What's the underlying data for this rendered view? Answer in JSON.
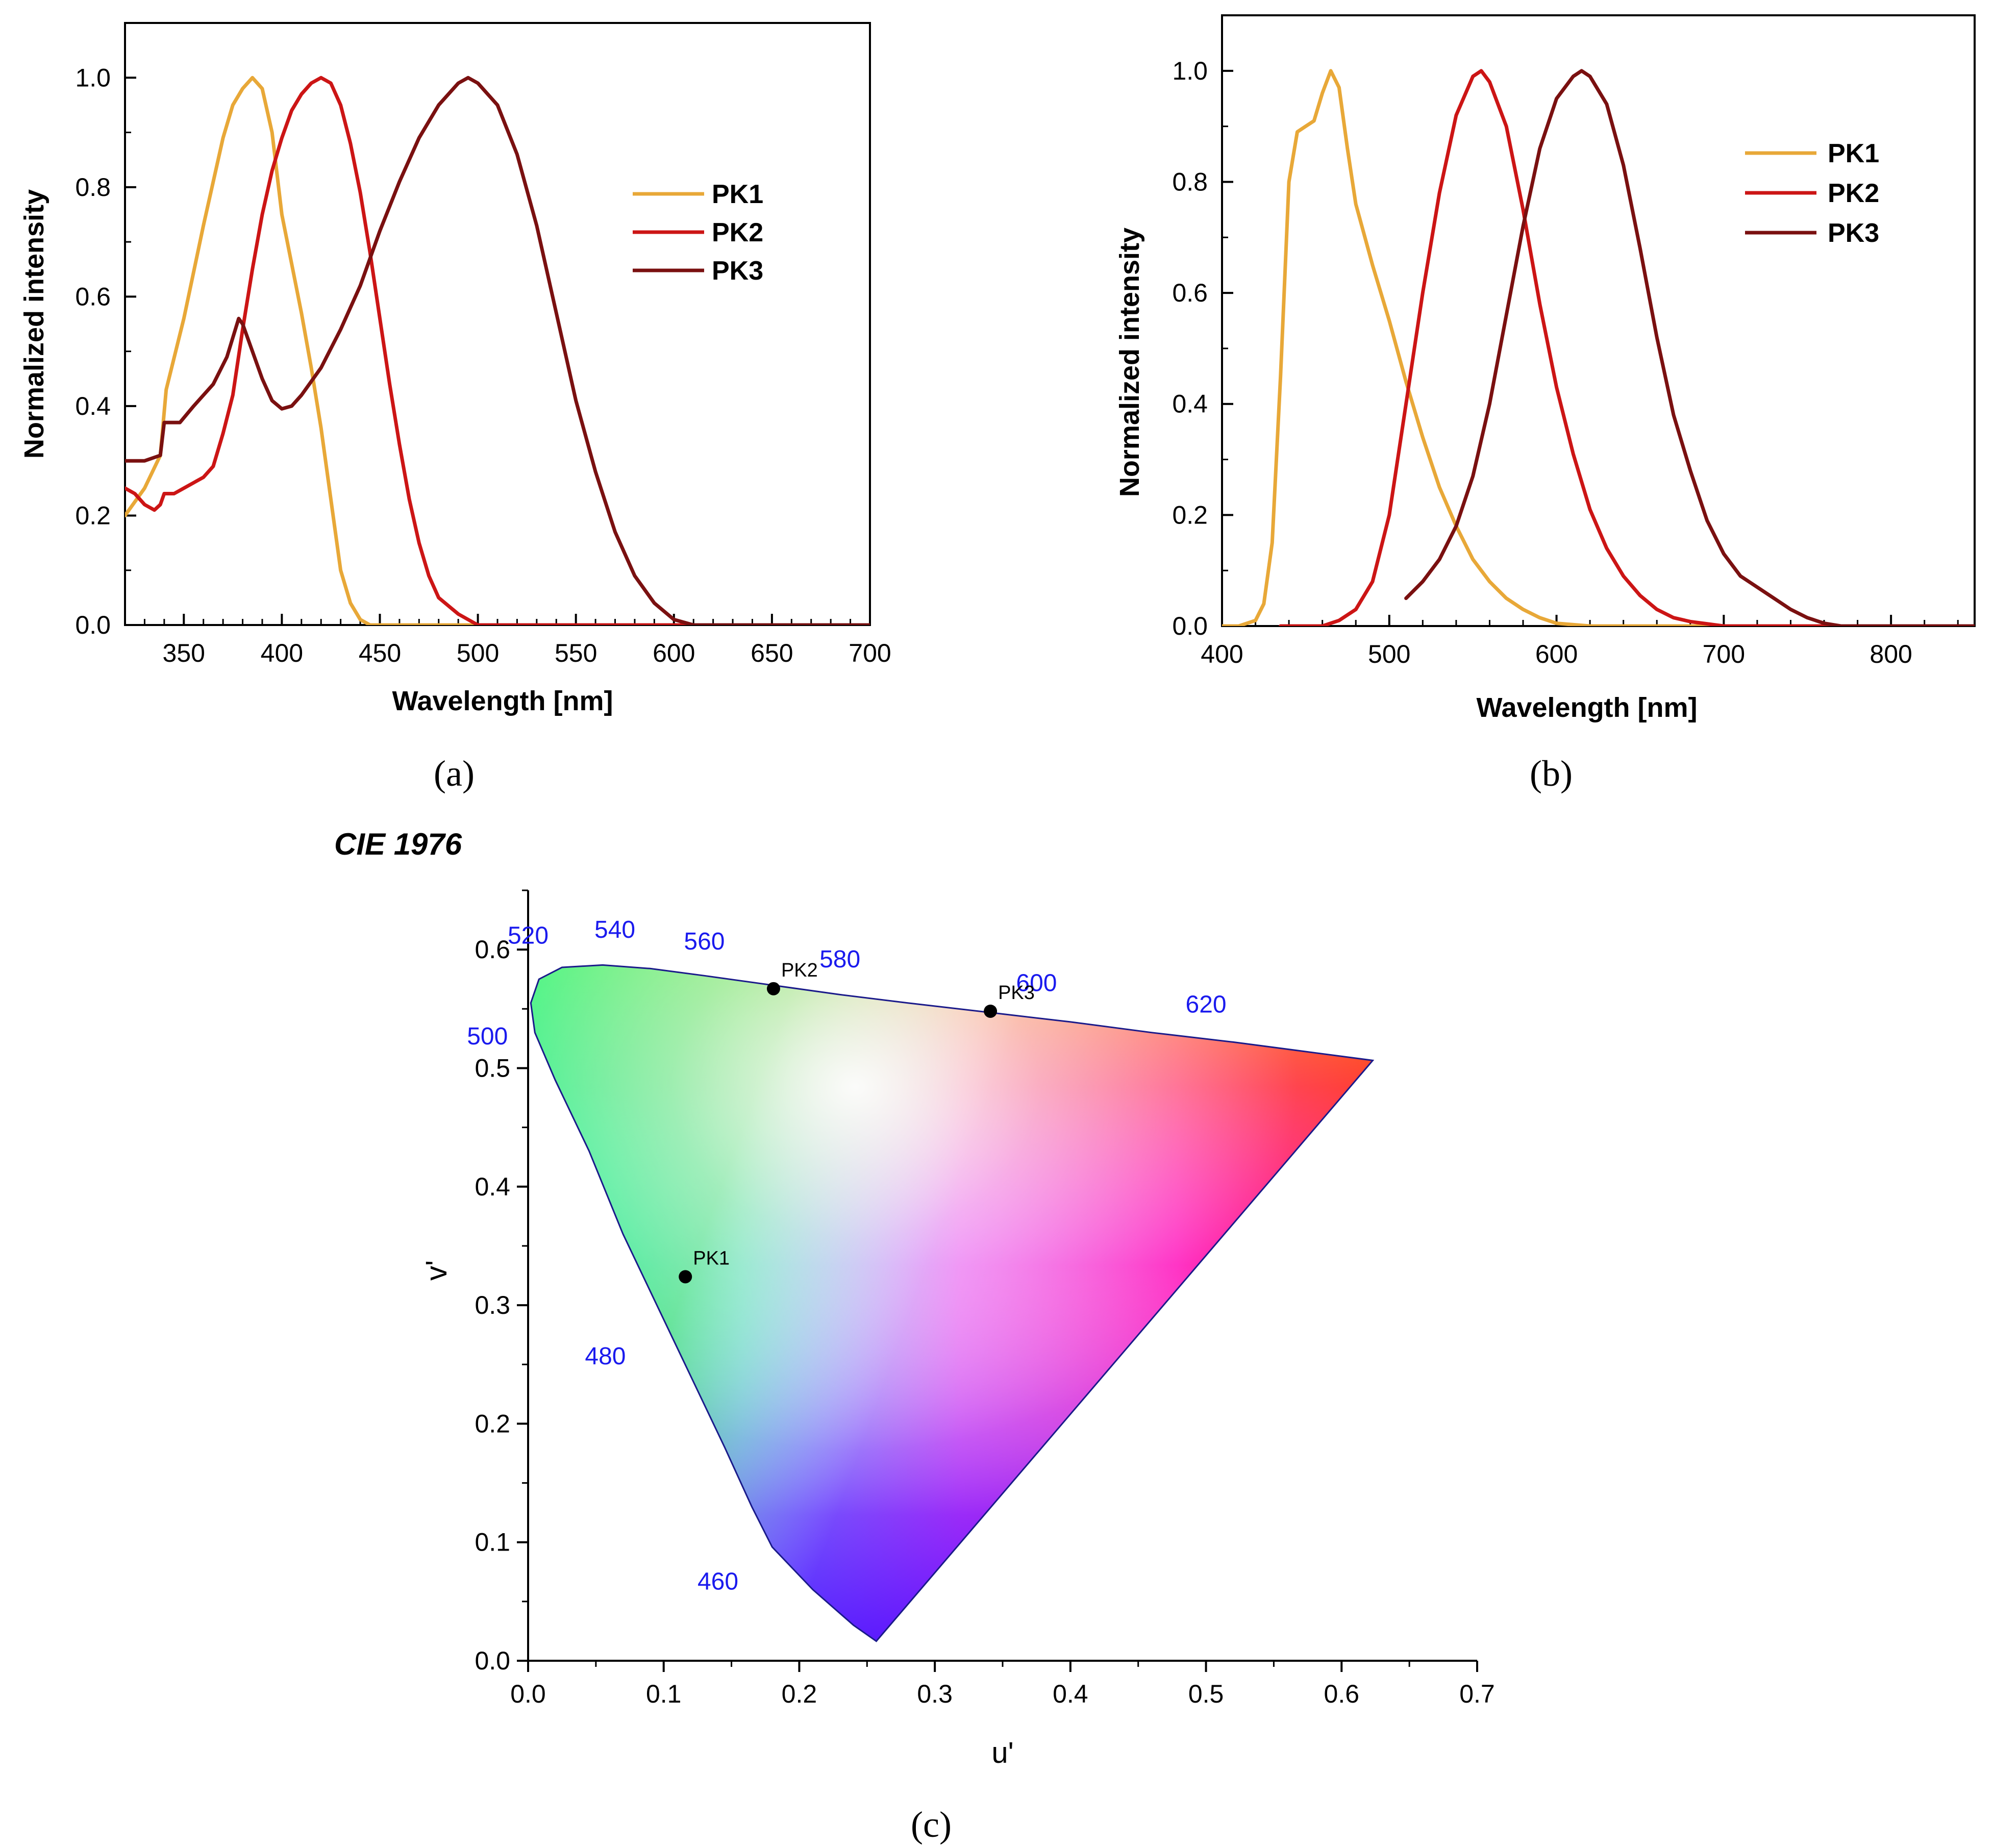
{
  "colors": {
    "PK1": "#E8A838",
    "PK2": "#CC1515",
    "PK3": "#7A1010",
    "wavelength_label": "#1a1aee"
  },
  "panels": {
    "a": "(a)",
    "b": "(b)",
    "c": "(c)"
  },
  "chart_data": [
    {
      "id": "a",
      "type": "line",
      "title": "",
      "xlabel": "Wavelength [nm]",
      "ylabel": "Normalized intensity",
      "xlim": [
        320,
        700
      ],
      "ylim": [
        0.0,
        1.1
      ],
      "xticks": [
        350,
        400,
        450,
        500,
        550,
        600,
        650,
        700
      ],
      "yticks": [
        "0.0",
        "0.2",
        "0.4",
        "0.6",
        "0.8",
        "1.0"
      ],
      "legend": [
        "PK1",
        "PK2",
        "PK3"
      ],
      "legend_position": "top-right",
      "series": [
        {
          "name": "PK1",
          "color": "#E8A838",
          "points": [
            [
              320,
              0.2
            ],
            [
              330,
              0.25
            ],
            [
              338,
              0.31
            ],
            [
              341,
              0.43
            ],
            [
              350,
              0.56
            ],
            [
              360,
              0.73
            ],
            [
              370,
              0.89
            ],
            [
              375,
              0.95
            ],
            [
              380,
              0.98
            ],
            [
              385,
              1.0
            ],
            [
              390,
              0.98
            ],
            [
              395,
              0.9
            ],
            [
              400,
              0.75
            ],
            [
              405,
              0.66
            ],
            [
              410,
              0.57
            ],
            [
              415,
              0.47
            ],
            [
              420,
              0.36
            ],
            [
              425,
              0.23
            ],
            [
              430,
              0.1
            ],
            [
              435,
              0.04
            ],
            [
              440,
              0.01
            ],
            [
              445,
              0.0
            ],
            [
              460,
              0.0
            ],
            [
              700,
              0.0
            ]
          ]
        },
        {
          "name": "PK2",
          "color": "#CC1515",
          "points": [
            [
              320,
              0.25
            ],
            [
              325,
              0.24
            ],
            [
              330,
              0.22
            ],
            [
              335,
              0.21
            ],
            [
              338,
              0.22
            ],
            [
              340,
              0.24
            ],
            [
              345,
              0.24
            ],
            [
              350,
              0.25
            ],
            [
              360,
              0.27
            ],
            [
              365,
              0.29
            ],
            [
              370,
              0.35
            ],
            [
              375,
              0.42
            ],
            [
              380,
              0.54
            ],
            [
              385,
              0.65
            ],
            [
              390,
              0.75
            ],
            [
              395,
              0.83
            ],
            [
              400,
              0.89
            ],
            [
              405,
              0.94
            ],
            [
              410,
              0.97
            ],
            [
              415,
              0.99
            ],
            [
              420,
              1.0
            ],
            [
              425,
              0.99
            ],
            [
              430,
              0.95
            ],
            [
              435,
              0.88
            ],
            [
              440,
              0.79
            ],
            [
              445,
              0.68
            ],
            [
              450,
              0.56
            ],
            [
              455,
              0.44
            ],
            [
              460,
              0.33
            ],
            [
              465,
              0.23
            ],
            [
              470,
              0.15
            ],
            [
              475,
              0.09
            ],
            [
              480,
              0.05
            ],
            [
              490,
              0.02
            ],
            [
              500,
              0.0
            ],
            [
              700,
              0.0
            ]
          ]
        },
        {
          "name": "PK3",
          "color": "#7A1010",
          "points": [
            [
              320,
              0.3
            ],
            [
              330,
              0.3
            ],
            [
              338,
              0.31
            ],
            [
              340,
              0.37
            ],
            [
              348,
              0.37
            ],
            [
              355,
              0.4
            ],
            [
              365,
              0.44
            ],
            [
              372,
              0.49
            ],
            [
              378,
              0.56
            ],
            [
              380,
              0.55
            ],
            [
              385,
              0.5
            ],
            [
              390,
              0.45
            ],
            [
              395,
              0.41
            ],
            [
              400,
              0.395
            ],
            [
              405,
              0.4
            ],
            [
              410,
              0.42
            ],
            [
              420,
              0.47
            ],
            [
              430,
              0.54
            ],
            [
              440,
              0.62
            ],
            [
              450,
              0.72
            ],
            [
              460,
              0.81
            ],
            [
              470,
              0.89
            ],
            [
              480,
              0.95
            ],
            [
              490,
              0.99
            ],
            [
              495,
              1.0
            ],
            [
              500,
              0.99
            ],
            [
              510,
              0.95
            ],
            [
              520,
              0.86
            ],
            [
              530,
              0.73
            ],
            [
              540,
              0.57
            ],
            [
              550,
              0.41
            ],
            [
              560,
              0.28
            ],
            [
              570,
              0.17
            ],
            [
              580,
              0.09
            ],
            [
              590,
              0.04
            ],
            [
              600,
              0.01
            ],
            [
              610,
              0.0
            ],
            [
              700,
              0.0
            ]
          ]
        }
      ]
    },
    {
      "id": "b",
      "type": "line",
      "title": "",
      "xlabel": "Wavelength [nm]",
      "ylabel": "Normalized intensity",
      "xlim": [
        400,
        850
      ],
      "ylim": [
        0.0,
        1.1
      ],
      "xticks": [
        400,
        500,
        600,
        700,
        800
      ],
      "yticks": [
        "0.0",
        "0.2",
        "0.4",
        "0.6",
        "0.8",
        "1.0"
      ],
      "legend": [
        "PK1",
        "PK2",
        "PK3"
      ],
      "legend_position": "top-right",
      "series": [
        {
          "name": "PK1",
          "color": "#E8A838",
          "points": [
            [
              400,
              0.0
            ],
            [
              410,
              0.0
            ],
            [
              420,
              0.01
            ],
            [
              425,
              0.04
            ],
            [
              430,
              0.15
            ],
            [
              435,
              0.45
            ],
            [
              440,
              0.8
            ],
            [
              445,
              0.89
            ],
            [
              450,
              0.9
            ],
            [
              455,
              0.91
            ],
            [
              460,
              0.96
            ],
            [
              465,
              1.0
            ],
            [
              470,
              0.97
            ],
            [
              475,
              0.86
            ],
            [
              480,
              0.76
            ],
            [
              490,
              0.65
            ],
            [
              500,
              0.55
            ],
            [
              510,
              0.44
            ],
            [
              520,
              0.34
            ],
            [
              530,
              0.25
            ],
            [
              540,
              0.18
            ],
            [
              550,
              0.12
            ],
            [
              560,
              0.08
            ],
            [
              570,
              0.05
            ],
            [
              580,
              0.03
            ],
            [
              590,
              0.015
            ],
            [
              600,
              0.005
            ],
            [
              620,
              0.0
            ],
            [
              850,
              0.0
            ]
          ]
        },
        {
          "name": "PK2",
          "color": "#CC1515",
          "points": [
            [
              435,
              0.0
            ],
            [
              460,
              0.0
            ],
            [
              470,
              0.01
            ],
            [
              480,
              0.03
            ],
            [
              490,
              0.08
            ],
            [
              500,
              0.2
            ],
            [
              510,
              0.4
            ],
            [
              520,
              0.6
            ],
            [
              530,
              0.78
            ],
            [
              540,
              0.92
            ],
            [
              550,
              0.99
            ],
            [
              555,
              1.0
            ],
            [
              560,
              0.98
            ],
            [
              570,
              0.9
            ],
            [
              580,
              0.75
            ],
            [
              590,
              0.58
            ],
            [
              600,
              0.43
            ],
            [
              610,
              0.31
            ],
            [
              620,
              0.21
            ],
            [
              630,
              0.14
            ],
            [
              640,
              0.09
            ],
            [
              650,
              0.055
            ],
            [
              660,
              0.03
            ],
            [
              670,
              0.015
            ],
            [
              680,
              0.008
            ],
            [
              700,
              0.0
            ],
            [
              850,
              0.0
            ]
          ]
        },
        {
          "name": "PK3",
          "color": "#7A1010",
          "points": [
            [
              510,
              0.05
            ],
            [
              520,
              0.08
            ],
            [
              530,
              0.12
            ],
            [
              540,
              0.18
            ],
            [
              550,
              0.27
            ],
            [
              560,
              0.4
            ],
            [
              570,
              0.56
            ],
            [
              580,
              0.72
            ],
            [
              590,
              0.86
            ],
            [
              600,
              0.95
            ],
            [
              610,
              0.99
            ],
            [
              615,
              1.0
            ],
            [
              620,
              0.99
            ],
            [
              630,
              0.94
            ],
            [
              640,
              0.83
            ],
            [
              650,
              0.68
            ],
            [
              660,
              0.52
            ],
            [
              670,
              0.38
            ],
            [
              680,
              0.28
            ],
            [
              690,
              0.19
            ],
            [
              700,
              0.13
            ],
            [
              710,
              0.09
            ],
            [
              720,
              0.07
            ],
            [
              730,
              0.05
            ],
            [
              740,
              0.03
            ],
            [
              750,
              0.015
            ],
            [
              760,
              0.005
            ],
            [
              770,
              0.0
            ],
            [
              850,
              0.0
            ]
          ]
        }
      ]
    },
    {
      "id": "c",
      "type": "scatter",
      "title": "CIE 1976",
      "xlabel": "u'",
      "ylabel": "v'",
      "xlim": [
        0.0,
        0.7
      ],
      "ylim": [
        0.0,
        0.65
      ],
      "xticks": [
        "0.0",
        "0.1",
        "0.2",
        "0.3",
        "0.4",
        "0.5",
        "0.6",
        "0.7"
      ],
      "yticks": [
        "0.0",
        "0.1",
        "0.2",
        "0.3",
        "0.4",
        "0.5",
        "0.6"
      ],
      "wavelength_labels": [
        {
          "label": "460",
          "u": 0.14,
          "v": 0.06
        },
        {
          "label": "480",
          "u": 0.057,
          "v": 0.25
        },
        {
          "label": "500",
          "u": -0.03,
          "v": 0.52
        },
        {
          "label": "520",
          "u": 0.0,
          "v": 0.605
        },
        {
          "label": "540",
          "u": 0.064,
          "v": 0.61
        },
        {
          "label": "560",
          "u": 0.13,
          "v": 0.6
        },
        {
          "label": "580",
          "u": 0.23,
          "v": 0.585
        },
        {
          "label": "600",
          "u": 0.375,
          "v": 0.565
        },
        {
          "label": "620",
          "u": 0.5,
          "v": 0.547
        }
      ],
      "points": [
        {
          "name": "PK1",
          "u": 0.116,
          "v": 0.324
        },
        {
          "name": "PK2",
          "u": 0.181,
          "v": 0.567
        },
        {
          "name": "PK3",
          "u": 0.341,
          "v": 0.548
        }
      ]
    }
  ]
}
